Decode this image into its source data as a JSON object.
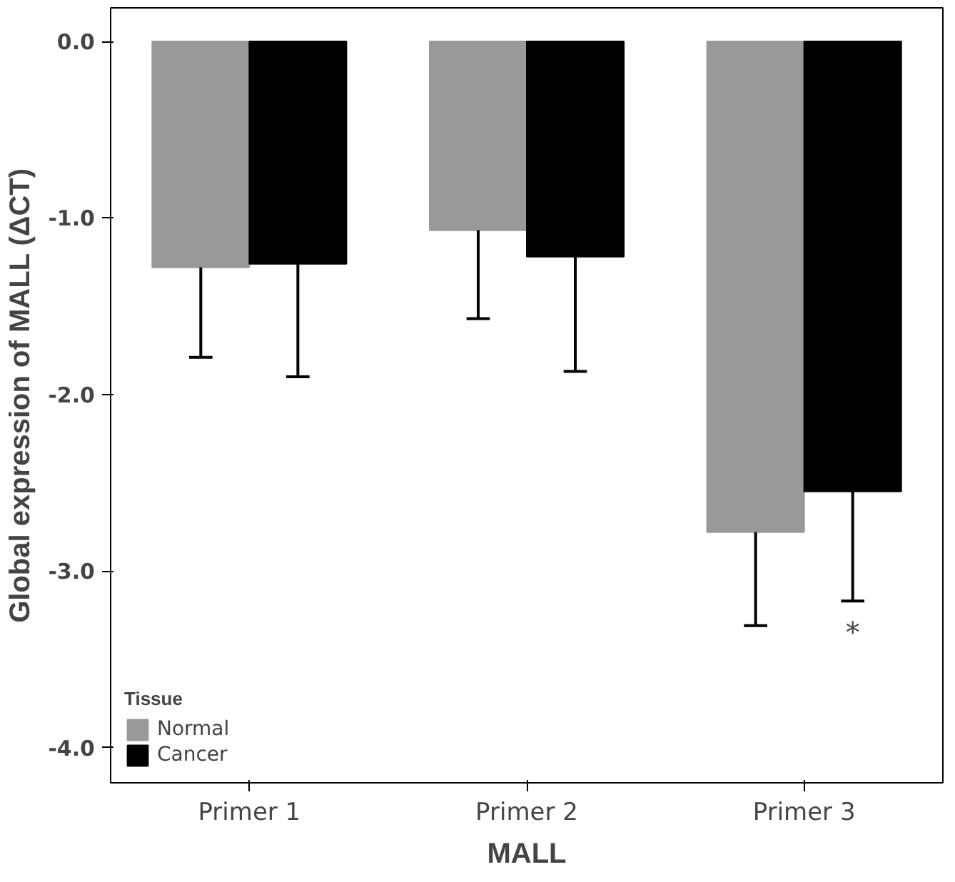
{
  "chart_data": {
    "type": "bar",
    "xlabel": "MALL",
    "ylabel": "Global expression of MALL (ΔCT)",
    "legend_title": "Tissue",
    "legend": "bottom left",
    "grid": false,
    "categories": [
      "Primer 1",
      "Primer 2",
      "Primer 3"
    ],
    "ylim": [
      -4.2,
      0.19
    ],
    "yticks": [
      {
        "value": 0,
        "label": "0.0"
      },
      {
        "value": -1,
        "label": "-1.0"
      },
      {
        "value": -2,
        "label": "-2.0"
      },
      {
        "value": -3,
        "label": "-3.0"
      },
      {
        "value": -4,
        "label": "-4.0"
      }
    ],
    "series": [
      {
        "name": "Normal",
        "color": "#999999",
        "values": [
          -1.28,
          -1.07,
          -2.78
        ],
        "errors": [
          [
            -1.79,
            -1.28
          ],
          [
            -1.57,
            -1.07
          ],
          [
            -3.31,
            -2.78
          ]
        ]
      },
      {
        "name": "Cancer",
        "color": "#000000",
        "values": [
          -1.26,
          -1.22,
          -2.55
        ],
        "errors": [
          [
            -1.9,
            -1.26
          ],
          [
            -1.87,
            -1.22
          ],
          [
            -3.17,
            -2.55
          ]
        ]
      }
    ],
    "annotations": [
      "*"
    ]
  }
}
